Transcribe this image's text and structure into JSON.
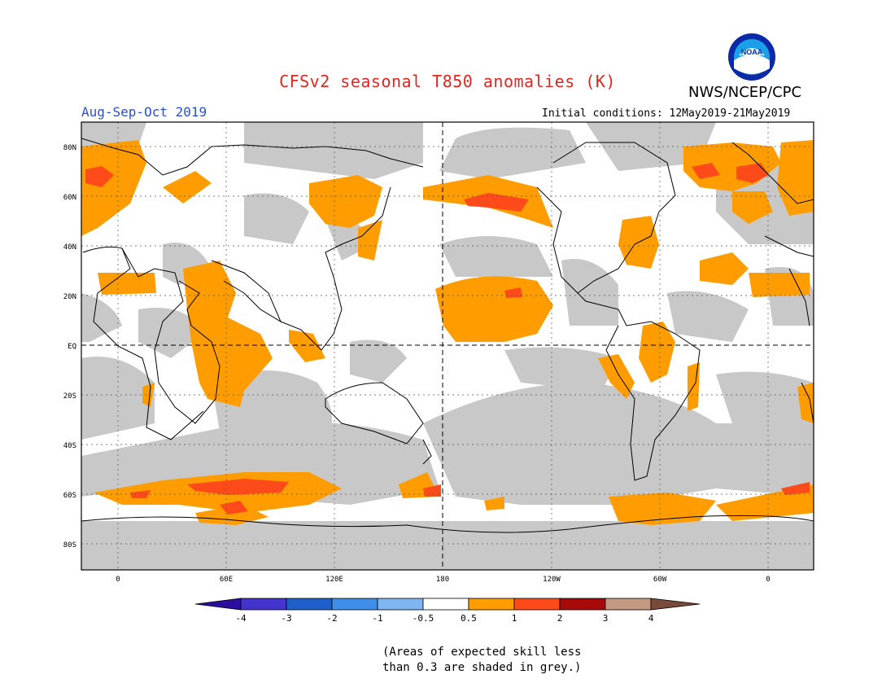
{
  "title": "CFSv2 seasonal T850 anomalies (K)",
  "agency": "NWS/NCEP/CPC",
  "season": "Aug-Sep-Oct 2019",
  "initial_conditions": "Initial conditions: 12May2019-21May2019",
  "logo_text": "NOAA",
  "lat_labels": [
    "80N",
    "60N",
    "40N",
    "20N",
    "EQ",
    "20S",
    "40S",
    "60S",
    "80S"
  ],
  "lon_labels": [
    "0",
    "60E",
    "120E",
    "180",
    "120W",
    "60W",
    "0"
  ],
  "colorbar": {
    "ticks": [
      "-4",
      "-3",
      "-2",
      "-1",
      "-0.5",
      "0.5",
      "1",
      "2",
      "3",
      "4"
    ],
    "colors": [
      "#2a0f9e",
      "#4433cc",
      "#1e5fcc",
      "#3f8fe8",
      "#7fb6f2",
      "#ffffff",
      "#ff9d00",
      "#ff4a1a",
      "#a80a0a",
      "#c49a84",
      "#7a4a3a"
    ]
  },
  "palette": {
    "grey": "#c8c8c8",
    "orange": "#ff9d00",
    "red": "#ff4a1a",
    "title": "#e0261f",
    "season": "#2b4fd8"
  },
  "note_line1": "(Areas of expected skill less",
  "note_line2": "than 0.3 are shaded in grey.)"
}
